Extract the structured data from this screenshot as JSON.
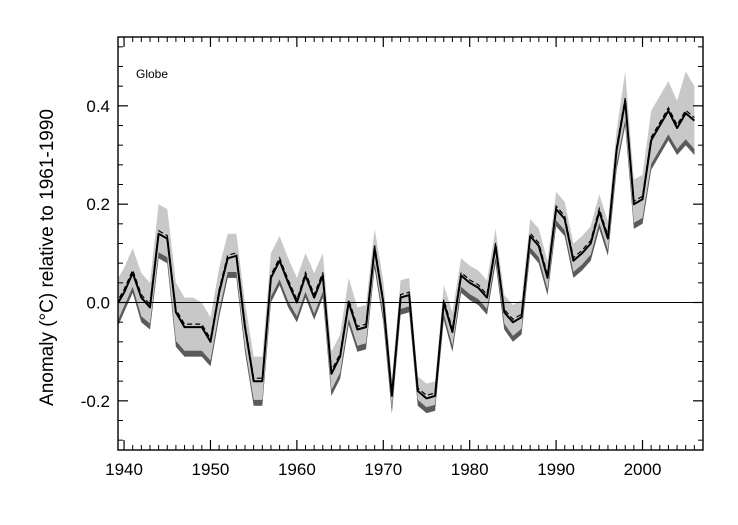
{
  "chart_data": {
    "type": "line",
    "title": "",
    "annotation": "Globe",
    "xlabel": "",
    "ylabel": "Anomaly (°C) relative to 1961-1990",
    "xlim": [
      1939.3,
      2007
    ],
    "ylim": [
      -0.3,
      0.54
    ],
    "xticks": [
      1940,
      1950,
      1960,
      1970,
      1980,
      1990,
      2000
    ],
    "yticks": [
      -0.2,
      0.0,
      0.2,
      0.4
    ],
    "ytick_labels": [
      "-0.2",
      "0.0",
      "0.2",
      "0.4"
    ],
    "zero_line": true,
    "grid": false,
    "colors": {
      "line": "#000000",
      "inner_band": "#5a5a5a",
      "outer_band": "#c8c8c8"
    },
    "x": [
      1939,
      1940,
      1941,
      1942,
      1943,
      1944,
      1945,
      1946,
      1947,
      1948,
      1949,
      1950,
      1951,
      1952,
      1953,
      1954,
      1955,
      1956,
      1957,
      1958,
      1959,
      1960,
      1961,
      1962,
      1963,
      1964,
      1965,
      1966,
      1967,
      1968,
      1969,
      1970,
      1971,
      1972,
      1973,
      1974,
      1975,
      1976,
      1977,
      1978,
      1979,
      1980,
      1981,
      1982,
      1983,
      1984,
      1985,
      1986,
      1987,
      1988,
      1989,
      1990,
      1991,
      1992,
      1993,
      1994,
      1995,
      1996,
      1997,
      1998,
      1999,
      2000,
      2001,
      2002,
      2003,
      2004,
      2005,
      2006
    ],
    "series": [
      {
        "values": [
          -0.01,
          0.02,
          0.06,
          0.01,
          -0.01,
          0.14,
          0.13,
          -0.02,
          -0.05,
          -0.05,
          -0.05,
          -0.08,
          0.02,
          0.09,
          0.095,
          -0.05,
          -0.16,
          -0.16,
          0.05,
          0.085,
          0.04,
          0.0,
          0.055,
          0.01,
          0.055,
          -0.145,
          -0.11,
          0.0,
          -0.055,
          -0.05,
          0.11,
          0.0,
          -0.19,
          0.01,
          0.015,
          -0.18,
          -0.195,
          -0.19,
          0.0,
          -0.06,
          0.055,
          0.04,
          0.03,
          0.01,
          0.115,
          -0.02,
          -0.04,
          -0.03,
          0.135,
          0.115,
          0.05,
          0.19,
          0.17,
          0.085,
          0.1,
          0.12,
          0.185,
          0.13,
          0.31,
          0.41,
          0.2,
          0.21,
          0.33,
          0.36,
          0.39,
          0.355,
          0.385,
          0.37
        ],
        "lower": [
          -0.06,
          -0.02,
          0.02,
          -0.04,
          -0.055,
          0.09,
          0.08,
          -0.09,
          -0.11,
          -0.11,
          -0.11,
          -0.13,
          -0.03,
          0.05,
          0.05,
          -0.1,
          -0.21,
          -0.21,
          0.0,
          0.035,
          -0.01,
          -0.04,
          0.01,
          -0.035,
          0.01,
          -0.19,
          -0.155,
          -0.045,
          -0.1,
          -0.095,
          0.07,
          -0.04,
          -0.225,
          -0.025,
          -0.02,
          -0.21,
          -0.225,
          -0.22,
          -0.035,
          -0.1,
          0.02,
          0.005,
          -0.005,
          -0.025,
          0.08,
          -0.055,
          -0.08,
          -0.065,
          0.1,
          0.08,
          0.015,
          0.155,
          0.135,
          0.05,
          0.065,
          0.085,
          0.15,
          0.095,
          0.27,
          0.36,
          0.15,
          0.16,
          0.27,
          0.3,
          0.33,
          0.3,
          0.32,
          0.3
        ],
        "upper": [
          0.04,
          0.07,
          0.11,
          0.06,
          0.04,
          0.2,
          0.19,
          0.04,
          0.01,
          0.01,
          0.0,
          -0.03,
          0.07,
          0.14,
          0.14,
          0.0,
          -0.11,
          -0.11,
          0.1,
          0.135,
          0.09,
          0.05,
          0.1,
          0.06,
          0.1,
          -0.1,
          -0.065,
          0.05,
          -0.01,
          -0.005,
          0.15,
          0.045,
          -0.155,
          0.045,
          0.05,
          -0.15,
          -0.165,
          -0.16,
          0.035,
          -0.02,
          0.09,
          0.075,
          0.065,
          0.045,
          0.15,
          0.015,
          -0.005,
          0.005,
          0.17,
          0.15,
          0.085,
          0.225,
          0.205,
          0.12,
          0.135,
          0.155,
          0.22,
          0.165,
          0.35,
          0.47,
          0.25,
          0.26,
          0.39,
          0.42,
          0.45,
          0.41,
          0.47,
          0.44
        ]
      }
    ]
  }
}
